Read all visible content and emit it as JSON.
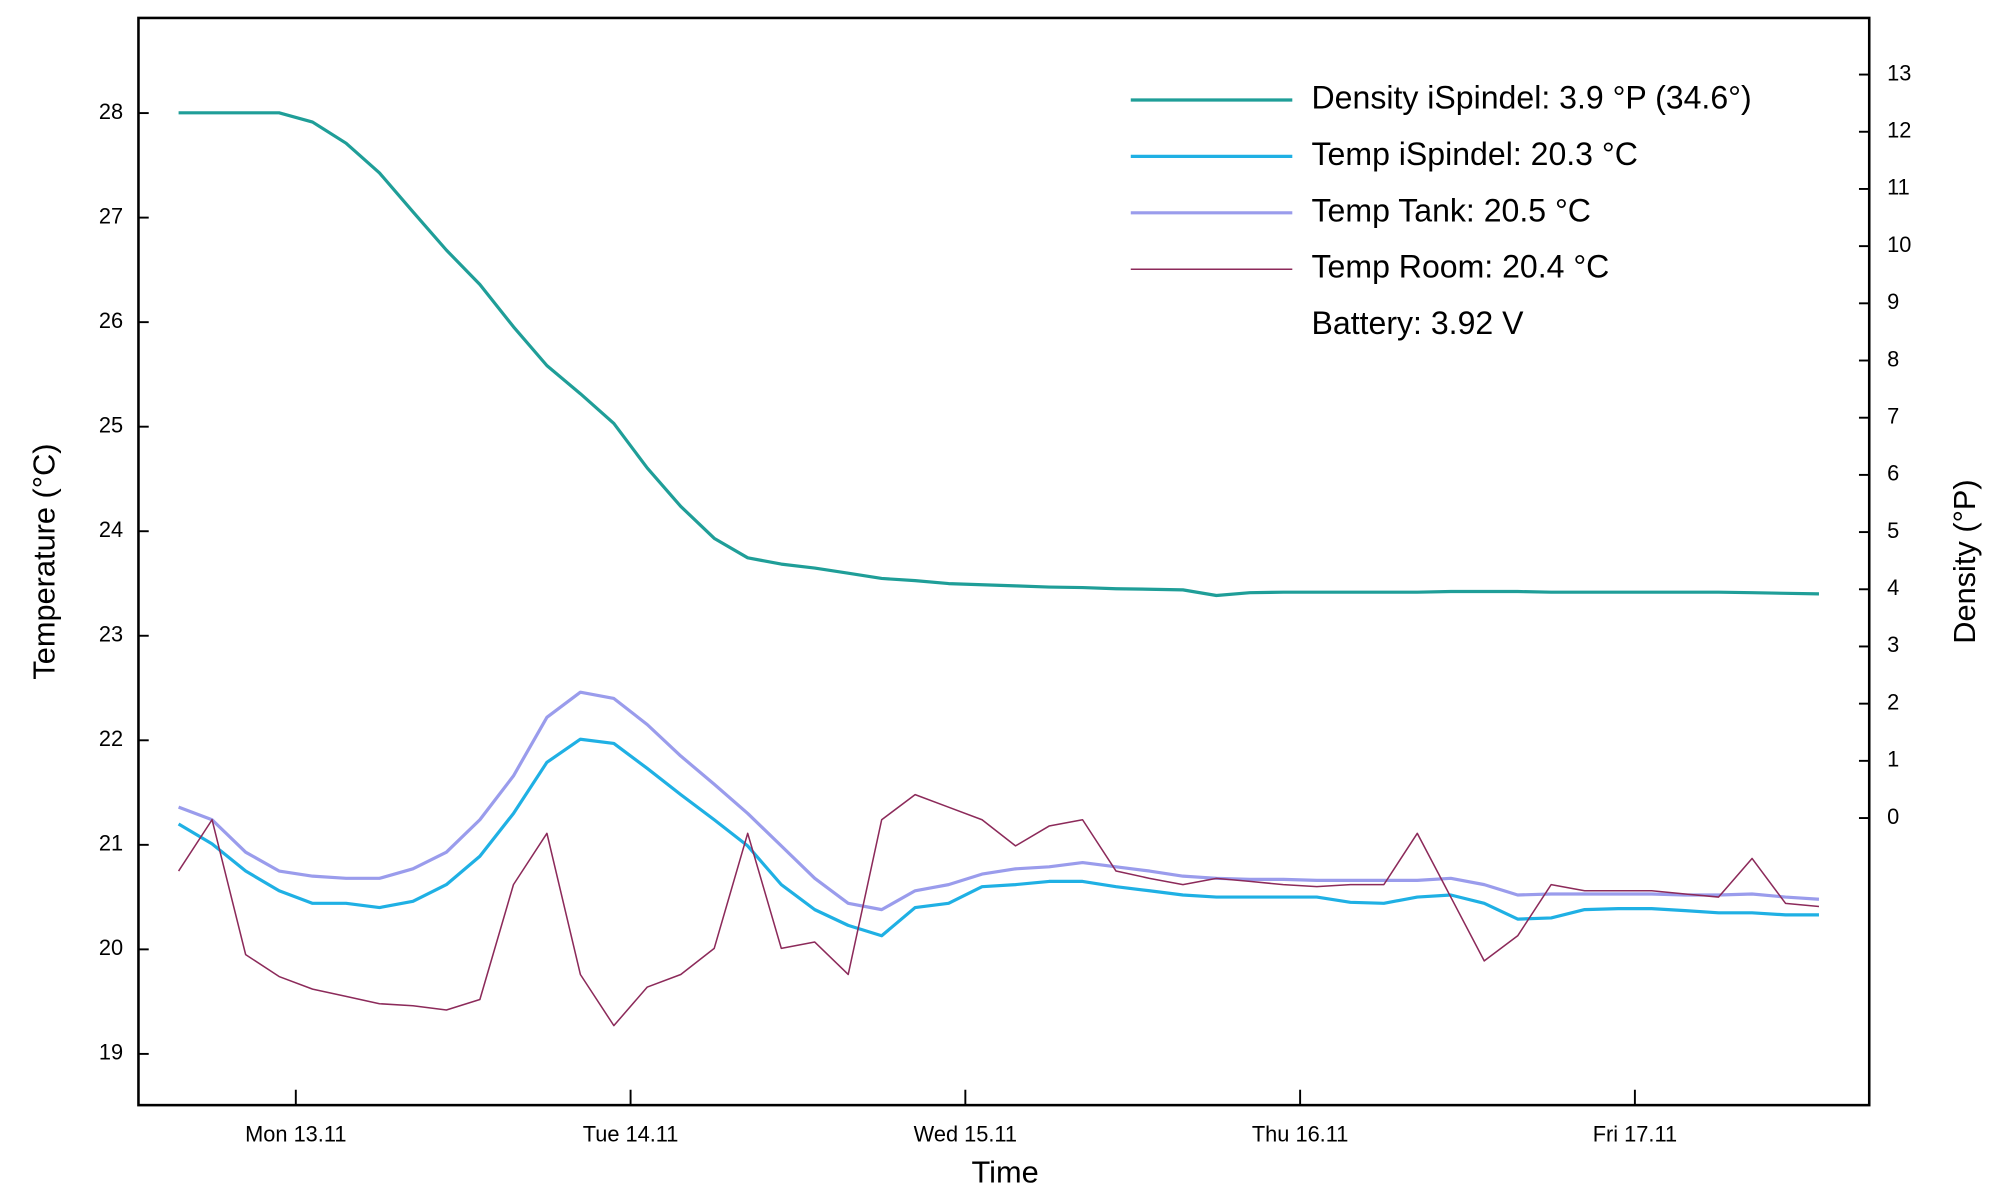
{
  "chart_data": {
    "type": "line",
    "x_label": "Time",
    "y_label": "Temperature (°C)",
    "y2_label": "Density (°P)",
    "annotation": "Battery: 3.92 V",
    "legend": "upper right",
    "x": [
      12.65,
      12.75,
      12.85,
      12.95,
      13.05,
      13.15,
      13.25,
      13.35,
      13.45,
      13.55,
      13.65,
      13.75,
      13.85,
      13.95,
      14.05,
      14.15,
      14.25,
      14.35,
      14.45,
      14.55,
      14.65,
      14.75,
      14.85,
      14.95,
      15.05,
      15.15,
      15.25,
      15.35,
      15.45,
      15.55,
      15.65,
      15.75,
      15.85,
      15.95,
      16.05,
      16.15,
      16.25,
      16.35,
      16.45,
      16.55,
      16.65,
      16.75,
      16.85,
      16.95,
      17.05,
      17.15,
      17.25,
      17.35,
      17.45,
      17.55
    ],
    "xlim": [
      12.53,
      17.7
    ],
    "xticks": [
      {
        "value": 13,
        "label": "Mon 13.11"
      },
      {
        "value": 14,
        "label": "Tue 14.11"
      },
      {
        "value": 15,
        "label": "Wed 15.11"
      },
      {
        "value": 16,
        "label": "Thu 16.11"
      },
      {
        "value": 17,
        "label": "Fri 17.11"
      }
    ],
    "ylim": [
      18.51,
      28.91
    ],
    "yticks": [
      19,
      20,
      21,
      22,
      23,
      24,
      25,
      26,
      27,
      28
    ],
    "y2lim": [
      -5.02,
      13.99
    ],
    "y2ticks": [
      0,
      1,
      2,
      3,
      4,
      5,
      6,
      7,
      8,
      9,
      10,
      11,
      12,
      13
    ],
    "series": [
      {
        "name": "Density iSpindel: 3.9 °P (34.6°)",
        "color": "#1f9e98",
        "axis": "y2",
        "width": 2.5,
        "values": [
          12.33,
          12.33,
          12.33,
          12.33,
          12.17,
          11.8,
          11.28,
          10.6,
          9.93,
          9.33,
          8.59,
          7.91,
          7.42,
          6.9,
          6.12,
          5.45,
          4.89,
          4.55,
          4.44,
          4.37,
          4.28,
          4.19,
          4.15,
          4.1,
          4.08,
          4.06,
          4.04,
          4.03,
          4.01,
          4.0,
          3.99,
          3.89,
          3.94,
          3.95,
          3.95,
          3.95,
          3.95,
          3.95,
          3.96,
          3.96,
          3.96,
          3.95,
          3.95,
          3.95,
          3.95,
          3.95,
          3.95,
          3.94,
          3.93,
          3.92
        ]
      },
      {
        "name": "Temp iSpindel: 20.3 °C",
        "color": "#1fb0e4",
        "width": 2.5,
        "values": [
          21.2,
          21.01,
          20.75,
          20.56,
          20.44,
          20.44,
          20.4,
          20.46,
          20.62,
          20.89,
          21.3,
          21.79,
          22.01,
          21.97,
          21.73,
          21.48,
          21.24,
          20.99,
          20.62,
          20.38,
          20.23,
          20.13,
          20.4,
          20.44,
          20.6,
          20.62,
          20.65,
          20.65,
          20.6,
          20.56,
          20.52,
          20.5,
          20.5,
          20.5,
          20.5,
          20.45,
          20.44,
          20.5,
          20.52,
          20.44,
          20.29,
          20.3,
          20.38,
          20.39,
          20.39,
          20.37,
          20.35,
          20.35,
          20.33,
          20.33
        ]
      },
      {
        "name": "Temp Tank: 20.5 °C",
        "color": "#9a9cec",
        "width": 2.5,
        "values": [
          21.36,
          21.24,
          20.93,
          20.75,
          20.7,
          20.68,
          20.68,
          20.77,
          20.93,
          21.24,
          21.66,
          22.22,
          22.46,
          22.4,
          22.15,
          21.85,
          21.58,
          21.3,
          20.99,
          20.68,
          20.44,
          20.38,
          20.56,
          20.62,
          20.72,
          20.77,
          20.79,
          20.83,
          20.79,
          20.75,
          20.7,
          20.68,
          20.67,
          20.67,
          20.66,
          20.66,
          20.66,
          20.66,
          20.68,
          20.62,
          20.52,
          20.53,
          20.53,
          20.53,
          20.53,
          20.52,
          20.52,
          20.53,
          20.5,
          20.48
        ]
      },
      {
        "name": "Temp Room: 20.4 °C",
        "color": "#8c2a5a",
        "width": 1.2,
        "values": [
          20.75,
          21.24,
          19.95,
          19.74,
          19.62,
          19.55,
          19.48,
          19.46,
          19.42,
          19.52,
          20.62,
          21.11,
          19.76,
          19.27,
          19.64,
          19.76,
          20.01,
          21.11,
          20.01,
          20.07,
          19.76,
          21.24,
          21.48,
          21.36,
          21.24,
          20.99,
          21.18,
          21.24,
          20.75,
          20.68,
          20.62,
          20.68,
          20.65,
          20.62,
          20.6,
          20.62,
          20.62,
          21.11,
          20.5,
          19.89,
          20.13,
          20.62,
          20.56,
          20.56,
          20.56,
          20.53,
          20.5,
          20.87,
          20.44,
          20.41
        ]
      }
    ]
  }
}
